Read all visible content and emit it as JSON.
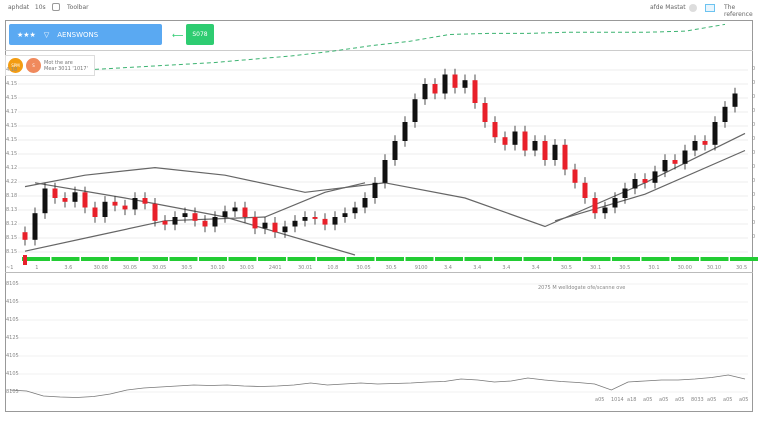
{
  "topbar": {
    "left_text": "aphdat",
    "left_num": "10s",
    "tools_label": "Toolbar",
    "right_text": "afde",
    "right_label": "Mastat",
    "reference_label": "The reference"
  },
  "banner": {
    "stars": "★★★",
    "label": "AENSWONS"
  },
  "green_button": {
    "label": "S078"
  },
  "legend": {
    "badge1": "SPM",
    "badge2": "S",
    "line1": "Mot the are",
    "line2": "Mear 3011 '1017'"
  },
  "colors": {
    "accent": "#5aa9f2",
    "up": "#111111",
    "down": "#e8202a",
    "green": "#22cc33",
    "ma": "#666666",
    "dashed": "#3cb371"
  },
  "y_labels": [
    "4.18",
    "4.15",
    "4.15",
    "4.17",
    "4.15",
    "4.15",
    "4.15",
    "4.12",
    "4.22",
    "8.18",
    "8.13",
    "8.12",
    "8.15",
    "8.15"
  ],
  "right_labels": [
    "0",
    "0",
    "0",
    "0",
    "0",
    "0",
    "0",
    "0",
    "0",
    "0",
    "0",
    "0",
    "0"
  ],
  "x_labels": [
    "~1",
    "1",
    "3.6",
    "30.08",
    "30.05",
    "30.05",
    "30.5",
    "30.10",
    "30.03",
    "2401",
    "30.01",
    "10.8",
    "30.05",
    "30.5",
    "9100",
    "3.4",
    "3.4",
    "3.4",
    "3.4",
    "30.5",
    "30.1",
    "30.5",
    "30.1",
    "30.00",
    "30.10",
    "30.5"
  ],
  "volume_panel": {
    "title": "2075 M  welldogate ofe/scanne ove",
    "y_labels": [
      "8105",
      "4105",
      "4105",
      "4125",
      "4105",
      "4105",
      "8105"
    ],
    "x_labels": [
      "a05",
      "1014",
      "a18",
      "a05",
      "a05",
      "a05",
      "8033",
      "a05",
      "a05",
      "a05"
    ]
  },
  "chart_data": {
    "type": "candlestick",
    "price_range": [
      0,
      100
    ],
    "candles": [
      [
        12,
        15,
        5,
        8
      ],
      [
        8,
        25,
        5,
        22
      ],
      [
        22,
        38,
        19,
        35
      ],
      [
        35,
        38,
        27,
        30
      ],
      [
        30,
        33,
        25,
        28
      ],
      [
        28,
        36,
        25,
        33
      ],
      [
        33,
        36,
        22,
        25
      ],
      [
        25,
        28,
        17,
        20
      ],
      [
        20,
        31,
        17,
        28
      ],
      [
        28,
        31,
        23,
        26
      ],
      [
        26,
        29,
        21,
        24
      ],
      [
        24,
        33,
        21,
        30
      ],
      [
        30,
        33,
        24,
        27
      ],
      [
        27,
        30,
        15,
        18
      ],
      [
        18,
        21,
        13,
        16
      ],
      [
        16,
        23,
        13,
        20
      ],
      [
        20,
        25,
        17,
        22
      ],
      [
        22,
        25,
        15,
        18
      ],
      [
        18,
        21,
        12,
        15
      ],
      [
        15,
        23,
        12,
        20
      ],
      [
        20,
        26,
        17,
        23
      ],
      [
        23,
        28,
        20,
        25
      ],
      [
        25,
        28,
        17,
        20
      ],
      [
        20,
        23,
        11,
        14
      ],
      [
        14,
        20,
        11,
        17
      ],
      [
        17,
        20,
        9,
        12
      ],
      [
        12,
        18,
        9,
        15
      ],
      [
        15,
        21,
        12,
        18
      ],
      [
        18,
        23,
        15,
        20
      ],
      [
        20,
        23,
        16,
        19
      ],
      [
        19,
        22,
        13,
        16
      ],
      [
        16,
        23,
        13,
        20
      ],
      [
        20,
        25,
        17,
        22
      ],
      [
        22,
        28,
        19,
        25
      ],
      [
        25,
        33,
        22,
        30
      ],
      [
        30,
        41,
        27,
        38
      ],
      [
        38,
        53,
        35,
        50
      ],
      [
        50,
        63,
        47,
        60
      ],
      [
        60,
        73,
        57,
        70
      ],
      [
        70,
        85,
        67,
        82
      ],
      [
        82,
        93,
        79,
        90
      ],
      [
        90,
        93,
        82,
        85
      ],
      [
        85,
        98,
        82,
        95
      ],
      [
        95,
        98,
        85,
        88
      ],
      [
        88,
        95,
        85,
        92
      ],
      [
        92,
        95,
        77,
        80
      ],
      [
        80,
        83,
        67,
        70
      ],
      [
        70,
        73,
        59,
        62
      ],
      [
        62,
        65,
        55,
        58
      ],
      [
        58,
        68,
        55,
        65
      ],
      [
        65,
        68,
        52,
        55
      ],
      [
        55,
        63,
        52,
        60
      ],
      [
        60,
        63,
        47,
        50
      ],
      [
        50,
        61,
        47,
        58
      ],
      [
        58,
        61,
        42,
        45
      ],
      [
        45,
        48,
        35,
        38
      ],
      [
        38,
        41,
        27,
        30
      ],
      [
        30,
        33,
        19,
        22
      ],
      [
        22,
        28,
        19,
        25
      ],
      [
        25,
        33,
        22,
        30
      ],
      [
        30,
        38,
        27,
        35
      ],
      [
        35,
        43,
        32,
        40
      ],
      [
        40,
        43,
        35,
        38
      ],
      [
        38,
        47,
        35,
        44
      ],
      [
        44,
        53,
        41,
        50
      ],
      [
        50,
        53,
        45,
        48
      ],
      [
        48,
        58,
        45,
        55
      ],
      [
        55,
        63,
        52,
        60
      ],
      [
        60,
        63,
        55,
        58
      ],
      [
        58,
        73,
        55,
        70
      ],
      [
        70,
        81,
        67,
        78
      ],
      [
        78,
        88,
        75,
        85
      ]
    ],
    "ma_lines": [
      [
        [
          0,
          36
        ],
        [
          6,
          42
        ],
        [
          13,
          46
        ],
        [
          20,
          42
        ],
        [
          28,
          33
        ],
        [
          36,
          38
        ],
        [
          44,
          30
        ],
        [
          52,
          15
        ],
        [
          62,
          38
        ],
        [
          72,
          64
        ]
      ],
      [
        [
          1,
          38
        ],
        [
          10,
          30
        ],
        [
          20,
          20
        ],
        [
          33,
          0
        ]
      ],
      [
        [
          0,
          2
        ],
        [
          7,
          10
        ],
        [
          14,
          18
        ],
        [
          24,
          20
        ],
        [
          30,
          33
        ],
        [
          34,
          38
        ]
      ],
      [
        [
          53,
          18
        ],
        [
          62,
          32
        ],
        [
          72,
          55
        ]
      ]
    ],
    "overview_line": [
      10,
      14,
      18,
      22,
      28,
      34,
      42,
      52,
      60,
      72,
      74,
      74,
      76,
      76,
      76,
      78,
      90
    ],
    "volume": [
      30,
      28,
      18,
      16,
      15,
      17,
      22,
      30,
      34,
      36,
      38,
      40,
      39,
      40,
      38,
      37,
      38,
      40,
      44,
      40,
      42,
      44,
      42,
      43,
      44,
      46,
      47,
      52,
      50,
      46,
      48,
      54,
      50,
      47,
      45,
      42,
      30,
      46,
      48,
      50,
      50,
      52,
      55,
      60,
      52
    ]
  }
}
